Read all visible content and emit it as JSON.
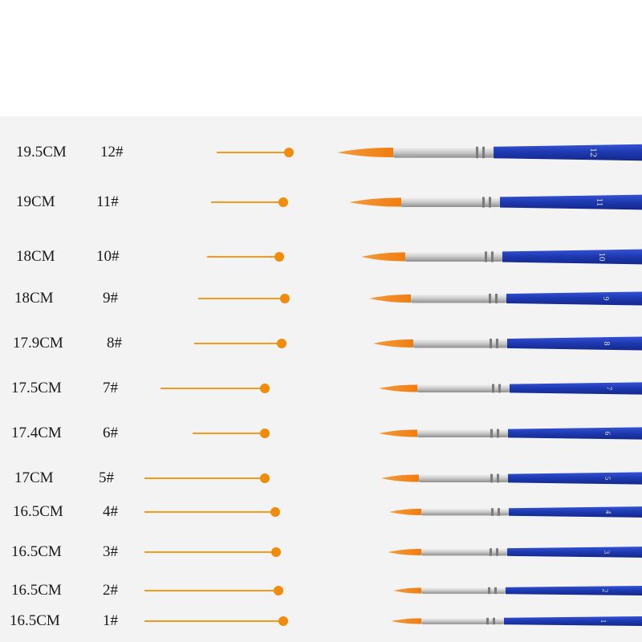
{
  "image": {
    "subject": "Set of twelve round-tip paint brushes with blue handles, silver ferrules and orange bristles",
    "colors": {
      "background": "#f3f3f3",
      "handle": "#1f3bb3",
      "ferrule": "#c9c9c9",
      "bristle": "#f07d10",
      "guide": "#f39a1e"
    }
  },
  "brushes": [
    {
      "length": "19.5CM",
      "size": "12#",
      "handle_mark": "12"
    },
    {
      "length": "19CM",
      "size": "11#",
      "handle_mark": "11"
    },
    {
      "length": "18CM",
      "size": "10#",
      "handle_mark": "10"
    },
    {
      "length": "18CM",
      "size": "9#",
      "handle_mark": "9"
    },
    {
      "length": "17.9CM",
      "size": "8#",
      "handle_mark": "8"
    },
    {
      "length": "17.5CM",
      "size": "7#",
      "handle_mark": "7"
    },
    {
      "length": "17.4CM",
      "size": "6#",
      "handle_mark": "6"
    },
    {
      "length": "17CM",
      "size": "5#",
      "handle_mark": "5"
    },
    {
      "length": "16.5CM",
      "size": "4#",
      "handle_mark": "4"
    },
    {
      "length": "16.5CM",
      "size": "3#",
      "handle_mark": "3"
    },
    {
      "length": "16.5CM",
      "size": "2#",
      "handle_mark": "2"
    },
    {
      "length": "16.5CM",
      "size": "1#",
      "handle_mark": "1"
    }
  ]
}
